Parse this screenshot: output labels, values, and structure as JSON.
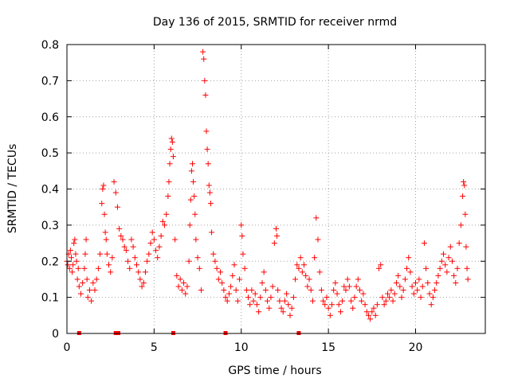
{
  "chart_data": {
    "type": "scatter",
    "title": "Day 136 of 2015, SRMTID for receiver nrmd",
    "xlabel": "GPS time / hours",
    "ylabel": "SRMTID / TECUs",
    "xlim": [
      0,
      24
    ],
    "ylim": [
      0,
      0.8
    ],
    "xticks": [
      0,
      5,
      10,
      15,
      20
    ],
    "yticks": [
      0,
      0.1,
      0.2,
      0.3,
      0.4,
      0.5,
      0.6,
      0.7,
      0.8
    ],
    "xtick_labels": [
      "0",
      "5",
      "10",
      "15",
      "20"
    ],
    "ytick_labels": [
      "0",
      "0.1",
      "0.2",
      "0.3",
      "0.4",
      "0.5",
      "0.6",
      "0.7",
      "0.8"
    ],
    "grid": true,
    "series": [
      {
        "name": "SRMTID",
        "marker": "+",
        "color": "#ff0000",
        "points": [
          [
            0.0,
            0.2
          ],
          [
            0.05,
            0.19
          ],
          [
            0.1,
            0.22
          ],
          [
            0.15,
            0.18
          ],
          [
            0.2,
            0.23
          ],
          [
            0.25,
            0.21
          ],
          [
            0.3,
            0.17
          ],
          [
            0.35,
            0.19
          ],
          [
            0.4,
            0.25
          ],
          [
            0.45,
            0.26
          ],
          [
            0.5,
            0.22
          ],
          [
            0.55,
            0.2
          ],
          [
            0.6,
            0.15
          ],
          [
            0.65,
            0.18
          ],
          [
            0.7,
            0.13
          ],
          [
            0.8,
            0.11
          ],
          [
            0.9,
            0.14
          ],
          [
            1.0,
            0.18
          ],
          [
            1.05,
            0.22
          ],
          [
            1.1,
            0.26
          ],
          [
            1.15,
            0.15
          ],
          [
            1.2,
            0.1
          ],
          [
            1.3,
            0.12
          ],
          [
            1.4,
            0.09
          ],
          [
            1.5,
            0.14
          ],
          [
            1.6,
            0.12
          ],
          [
            1.7,
            0.15
          ],
          [
            1.8,
            0.18
          ],
          [
            1.9,
            0.22
          ],
          [
            2.0,
            0.36
          ],
          [
            2.05,
            0.4
          ],
          [
            2.1,
            0.41
          ],
          [
            2.15,
            0.33
          ],
          [
            2.2,
            0.28
          ],
          [
            2.25,
            0.26
          ],
          [
            2.3,
            0.22
          ],
          [
            2.4,
            0.19
          ],
          [
            2.5,
            0.17
          ],
          [
            2.6,
            0.21
          ],
          [
            2.7,
            0.42
          ],
          [
            2.8,
            0.39
          ],
          [
            2.9,
            0.35
          ],
          [
            3.0,
            0.29
          ],
          [
            3.1,
            0.27
          ],
          [
            3.2,
            0.26
          ],
          [
            3.3,
            0.24
          ],
          [
            3.4,
            0.23
          ],
          [
            3.5,
            0.2
          ],
          [
            3.6,
            0.18
          ],
          [
            3.7,
            0.26
          ],
          [
            3.8,
            0.24
          ],
          [
            3.9,
            0.21
          ],
          [
            4.0,
            0.19
          ],
          [
            4.1,
            0.17
          ],
          [
            4.2,
            0.15
          ],
          [
            4.3,
            0.13
          ],
          [
            4.4,
            0.14
          ],
          [
            4.5,
            0.17
          ],
          [
            4.6,
            0.2
          ],
          [
            4.7,
            0.22
          ],
          [
            4.8,
            0.25
          ],
          [
            4.9,
            0.28
          ],
          [
            5.0,
            0.26
          ],
          [
            5.1,
            0.23
          ],
          [
            5.2,
            0.21
          ],
          [
            5.3,
            0.24
          ],
          [
            5.4,
            0.27
          ],
          [
            5.5,
            0.31
          ],
          [
            5.6,
            0.3
          ],
          [
            5.7,
            0.33
          ],
          [
            5.8,
            0.38
          ],
          [
            5.85,
            0.42
          ],
          [
            5.9,
            0.47
          ],
          [
            5.95,
            0.51
          ],
          [
            6.0,
            0.54
          ],
          [
            6.05,
            0.53
          ],
          [
            6.1,
            0.49
          ],
          [
            6.2,
            0.26
          ],
          [
            6.3,
            0.16
          ],
          [
            6.4,
            0.13
          ],
          [
            6.5,
            0.15
          ],
          [
            6.6,
            0.12
          ],
          [
            6.7,
            0.14
          ],
          [
            6.8,
            0.11
          ],
          [
            6.9,
            0.13
          ],
          [
            7.0,
            0.2
          ],
          [
            7.05,
            0.3
          ],
          [
            7.1,
            0.37
          ],
          [
            7.15,
            0.45
          ],
          [
            7.2,
            0.47
          ],
          [
            7.25,
            0.42
          ],
          [
            7.3,
            0.38
          ],
          [
            7.35,
            0.33
          ],
          [
            7.4,
            0.26
          ],
          [
            7.5,
            0.21
          ],
          [
            7.6,
            0.18
          ],
          [
            7.7,
            0.12
          ],
          [
            7.8,
            0.78
          ],
          [
            7.85,
            0.76
          ],
          [
            7.9,
            0.7
          ],
          [
            7.95,
            0.66
          ],
          [
            8.0,
            0.56
          ],
          [
            8.05,
            0.51
          ],
          [
            8.1,
            0.47
          ],
          [
            8.15,
            0.41
          ],
          [
            8.2,
            0.39
          ],
          [
            8.25,
            0.36
          ],
          [
            8.3,
            0.28
          ],
          [
            8.4,
            0.22
          ],
          [
            8.5,
            0.2
          ],
          [
            8.6,
            0.18
          ],
          [
            8.7,
            0.15
          ],
          [
            8.8,
            0.17
          ],
          [
            8.9,
            0.14
          ],
          [
            9.0,
            0.12
          ],
          [
            9.1,
            0.1
          ],
          [
            9.2,
            0.09
          ],
          [
            9.3,
            0.11
          ],
          [
            9.4,
            0.13
          ],
          [
            9.5,
            0.16
          ],
          [
            9.6,
            0.19
          ],
          [
            9.7,
            0.12
          ],
          [
            9.8,
            0.09
          ],
          [
            9.9,
            0.15
          ],
          [
            10.0,
            0.3
          ],
          [
            10.05,
            0.27
          ],
          [
            10.1,
            0.22
          ],
          [
            10.2,
            0.18
          ],
          [
            10.3,
            0.12
          ],
          [
            10.4,
            0.1
          ],
          [
            10.5,
            0.08
          ],
          [
            10.6,
            0.12
          ],
          [
            10.7,
            0.09
          ],
          [
            10.8,
            0.11
          ],
          [
            10.9,
            0.08
          ],
          [
            11.0,
            0.06
          ],
          [
            11.1,
            0.1
          ],
          [
            11.2,
            0.14
          ],
          [
            11.3,
            0.17
          ],
          [
            11.4,
            0.12
          ],
          [
            11.5,
            0.09
          ],
          [
            11.6,
            0.07
          ],
          [
            11.7,
            0.1
          ],
          [
            11.8,
            0.13
          ],
          [
            11.9,
            0.25
          ],
          [
            12.0,
            0.29
          ],
          [
            12.05,
            0.27
          ],
          [
            12.1,
            0.12
          ],
          [
            12.2,
            0.09
          ],
          [
            12.3,
            0.07
          ],
          [
            12.4,
            0.06
          ],
          [
            12.5,
            0.09
          ],
          [
            12.6,
            0.11
          ],
          [
            12.7,
            0.08
          ],
          [
            12.8,
            0.05
          ],
          [
            12.9,
            0.07
          ],
          [
            13.0,
            0.1
          ],
          [
            13.1,
            0.15
          ],
          [
            13.2,
            0.19
          ],
          [
            13.3,
            0.18
          ],
          [
            13.4,
            0.21
          ],
          [
            13.5,
            0.17
          ],
          [
            13.6,
            0.19
          ],
          [
            13.7,
            0.16
          ],
          [
            13.8,
            0.13
          ],
          [
            13.9,
            0.15
          ],
          [
            14.0,
            0.12
          ],
          [
            14.1,
            0.09
          ],
          [
            14.2,
            0.21
          ],
          [
            14.3,
            0.32
          ],
          [
            14.4,
            0.26
          ],
          [
            14.5,
            0.17
          ],
          [
            14.6,
            0.12
          ],
          [
            14.7,
            0.09
          ],
          [
            14.8,
            0.08
          ],
          [
            14.9,
            0.1
          ],
          [
            15.0,
            0.07
          ],
          [
            15.1,
            0.05
          ],
          [
            15.2,
            0.08
          ],
          [
            15.3,
            0.12
          ],
          [
            15.4,
            0.14
          ],
          [
            15.5,
            0.11
          ],
          [
            15.6,
            0.08
          ],
          [
            15.7,
            0.06
          ],
          [
            15.8,
            0.09
          ],
          [
            15.9,
            0.13
          ],
          [
            16.0,
            0.12
          ],
          [
            16.1,
            0.15
          ],
          [
            16.2,
            0.13
          ],
          [
            16.3,
            0.09
          ],
          [
            16.4,
            0.07
          ],
          [
            16.5,
            0.1
          ],
          [
            16.6,
            0.13
          ],
          [
            16.7,
            0.15
          ],
          [
            16.8,
            0.12
          ],
          [
            16.9,
            0.09
          ],
          [
            17.0,
            0.11
          ],
          [
            17.1,
            0.08
          ],
          [
            17.2,
            0.06
          ],
          [
            17.3,
            0.05
          ],
          [
            17.4,
            0.04
          ],
          [
            17.5,
            0.06
          ],
          [
            17.6,
            0.07
          ],
          [
            17.7,
            0.05
          ],
          [
            17.8,
            0.08
          ],
          [
            17.9,
            0.18
          ],
          [
            18.0,
            0.19
          ],
          [
            18.1,
            0.1
          ],
          [
            18.2,
            0.08
          ],
          [
            18.3,
            0.09
          ],
          [
            18.4,
            0.11
          ],
          [
            18.5,
            0.1
          ],
          [
            18.6,
            0.12
          ],
          [
            18.7,
            0.09
          ],
          [
            18.8,
            0.11
          ],
          [
            18.9,
            0.14
          ],
          [
            19.0,
            0.16
          ],
          [
            19.1,
            0.13
          ],
          [
            19.2,
            0.1
          ],
          [
            19.3,
            0.12
          ],
          [
            19.4,
            0.15
          ],
          [
            19.5,
            0.18
          ],
          [
            19.6,
            0.21
          ],
          [
            19.7,
            0.17
          ],
          [
            19.8,
            0.13
          ],
          [
            19.9,
            0.11
          ],
          [
            20.0,
            0.14
          ],
          [
            20.1,
            0.12
          ],
          [
            20.2,
            0.15
          ],
          [
            20.3,
            0.1
          ],
          [
            20.4,
            0.13
          ],
          [
            20.5,
            0.25
          ],
          [
            20.6,
            0.18
          ],
          [
            20.7,
            0.14
          ],
          [
            20.8,
            0.11
          ],
          [
            20.9,
            0.08
          ],
          [
            21.0,
            0.1
          ],
          [
            21.1,
            0.12
          ],
          [
            21.2,
            0.14
          ],
          [
            21.3,
            0.16
          ],
          [
            21.4,
            0.18
          ],
          [
            21.5,
            0.2
          ],
          [
            21.6,
            0.22
          ],
          [
            21.7,
            0.19
          ],
          [
            21.8,
            0.17
          ],
          [
            21.9,
            0.21
          ],
          [
            22.0,
            0.24
          ],
          [
            22.1,
            0.2
          ],
          [
            22.2,
            0.16
          ],
          [
            22.3,
            0.14
          ],
          [
            22.4,
            0.18
          ],
          [
            22.5,
            0.25
          ],
          [
            22.6,
            0.3
          ],
          [
            22.7,
            0.38
          ],
          [
            22.75,
            0.42
          ],
          [
            22.8,
            0.41
          ],
          [
            22.85,
            0.33
          ],
          [
            22.9,
            0.24
          ],
          [
            22.95,
            0.18
          ],
          [
            23.0,
            0.15
          ]
        ]
      }
    ],
    "zero_points": [
      0.7,
      2.8,
      2.95,
      6.1,
      9.1,
      13.3
    ]
  }
}
